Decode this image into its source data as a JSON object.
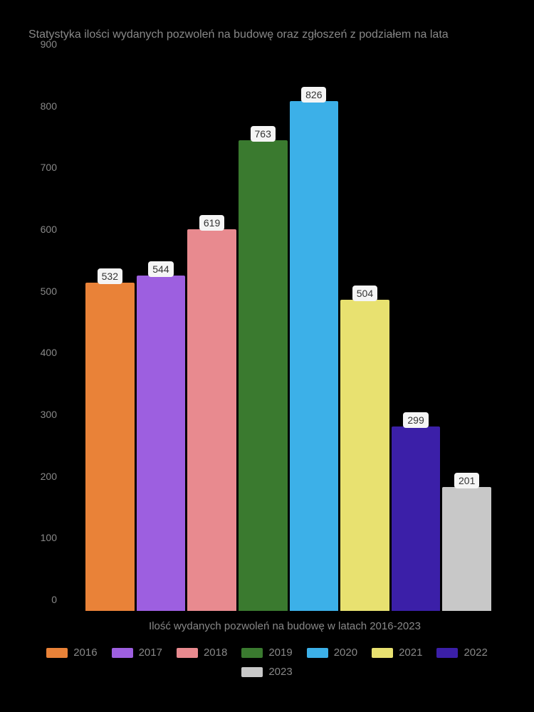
{
  "chart": {
    "type": "bar",
    "title": "Statystyka ilości wydanych pozwoleń na budowę oraz zgłoszeń z podziałem na lata",
    "xlabel": "Ilość wydanych pozwoleń na budowę w latach 2016-2023",
    "ylim_max": 900,
    "ytick_step": 100,
    "yticks": [
      "0",
      "100",
      "200",
      "300",
      "400",
      "500",
      "600",
      "700",
      "800",
      "900"
    ],
    "background_color": "#000000",
    "text_color": "#888888",
    "label_bg": "#f5f5f5",
    "label_color": "#333333",
    "title_fontsize": 16,
    "label_fontsize": 14,
    "bars": [
      {
        "year": "2016",
        "value": 532,
        "color": "#e98238"
      },
      {
        "year": "2017",
        "value": 544,
        "color": "#9d5fe0"
      },
      {
        "year": "2018",
        "value": 619,
        "color": "#e88a8f"
      },
      {
        "year": "2019",
        "value": 763,
        "color": "#3a7a2f"
      },
      {
        "year": "2020",
        "value": 826,
        "color": "#3cb0e8"
      },
      {
        "year": "2021",
        "value": 504,
        "color": "#e8e170"
      },
      {
        "year": "2022",
        "value": 299,
        "color": "#3b1fa8"
      },
      {
        "year": "2023",
        "value": 201,
        "color": "#c8c8c8"
      }
    ]
  }
}
